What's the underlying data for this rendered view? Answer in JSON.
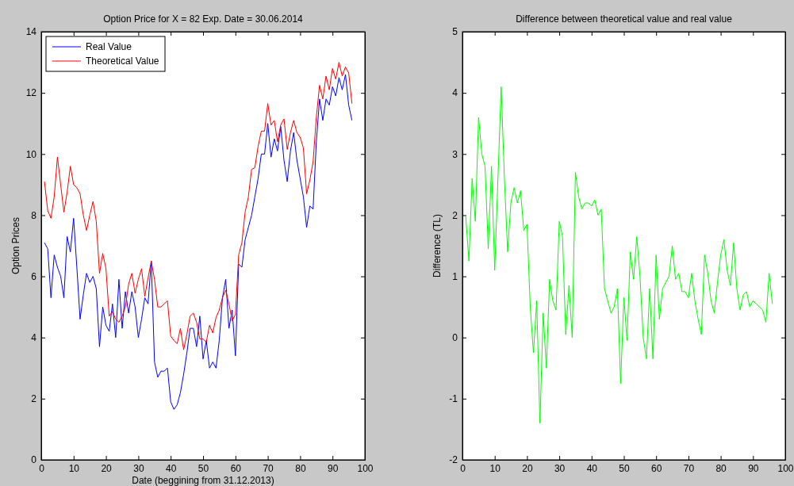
{
  "chart_data": [
    {
      "type": "line",
      "title": "Option Price for X = 82 Exp. Date = 30.06.2014",
      "xlabel": "Date (beggining from 31.12.2013)",
      "ylabel": "Option Prices",
      "x": [
        1,
        2,
        3,
        4,
        5,
        6,
        7,
        8,
        9,
        10,
        11,
        12,
        13,
        14,
        15,
        16,
        17,
        18,
        19,
        20,
        21,
        22,
        23,
        24,
        25,
        26,
        27,
        28,
        29,
        30,
        31,
        32,
        33,
        34,
        35,
        36,
        37,
        38,
        39,
        40,
        41,
        42,
        43,
        44,
        45,
        46,
        47,
        48,
        49,
        50,
        51,
        52,
        53,
        54,
        55,
        56,
        57,
        58,
        59,
        60,
        61,
        62,
        63,
        64,
        65,
        66,
        67,
        68,
        69,
        70,
        71,
        72,
        73,
        74,
        75,
        76,
        77,
        78,
        79,
        80,
        81,
        82,
        83,
        84,
        85,
        86,
        87,
        88,
        89,
        90,
        91,
        92,
        93,
        94,
        95,
        96
      ],
      "series": [
        {
          "name": "Real Value",
          "color": "#0000ff",
          "values": [
            7.1,
            6.9,
            5.3,
            6.7,
            6.3,
            6.0,
            5.3,
            7.3,
            6.8,
            7.9,
            6.3,
            4.6,
            5.4,
            6.1,
            5.8,
            6.0,
            5.6,
            3.7,
            5.0,
            4.4,
            4.2,
            5.1,
            4.0,
            5.9,
            4.3,
            5.5,
            4.8,
            5.5,
            5.0,
            4.0,
            4.6,
            5.3,
            5.1,
            6.5,
            3.2,
            2.7,
            2.9,
            2.9,
            3.0,
            1.9,
            1.65,
            1.8,
            2.2,
            2.8,
            3.5,
            4.3,
            4.3,
            3.7,
            4.7,
            3.3,
            3.9,
            3.0,
            3.2,
            3.0,
            3.9,
            5.3,
            5.9,
            4.3,
            4.9,
            3.4,
            6.4,
            6.3,
            7.2,
            7.6,
            8.0,
            8.6,
            9.2,
            10.0,
            10.0,
            11.0,
            9.9,
            10.5,
            10.1,
            10.9,
            9.8,
            9.1,
            10.1,
            10.7,
            9.8,
            9.2,
            8.6,
            7.6,
            8.3,
            8.2,
            10.4,
            11.8,
            11.1,
            11.8,
            11.6,
            12.2,
            11.9,
            12.5,
            12.1,
            12.6,
            11.6,
            11.1
          ]
        },
        {
          "name": "Theoretical Value",
          "color": "#ff0000",
          "values": [
            9.1,
            8.15,
            7.9,
            8.6,
            9.9,
            9.0,
            8.1,
            8.75,
            9.6,
            9.0,
            8.9,
            8.7,
            8.0,
            7.5,
            8.0,
            8.45,
            7.8,
            6.1,
            6.75,
            6.25,
            4.7,
            4.85,
            4.6,
            4.5,
            4.7,
            5.0,
            5.75,
            6.1,
            5.45,
            5.9,
            6.25,
            5.35,
            5.95,
            6.5,
            5.9,
            5.0,
            5.0,
            5.1,
            5.2,
            4.05,
            3.9,
            3.8,
            4.3,
            3.6,
            4.1,
            4.7,
            4.8,
            4.5,
            3.95,
            3.95,
            3.85,
            4.4,
            4.15,
            4.65,
            4.9,
            5.3,
            5.55,
            5.1,
            4.55,
            4.75,
            6.7,
            7.1,
            8.1,
            8.6,
            9.5,
            9.55,
            10.25,
            10.75,
            10.75,
            11.65,
            10.95,
            11.1,
            10.4,
            10.95,
            11.15,
            10.15,
            10.7,
            11.1,
            10.7,
            10.55,
            10.2,
            8.7,
            9.15,
            9.75,
            11.2,
            12.25,
            11.8,
            12.55,
            12.1,
            12.8,
            12.45,
            13.0,
            12.55,
            12.85,
            12.65,
            11.65
          ]
        }
      ],
      "xlim": [
        0,
        100
      ],
      "xticks": [
        0,
        10,
        20,
        30,
        40,
        50,
        60,
        70,
        80,
        90,
        100
      ],
      "ylim": [
        0,
        14
      ],
      "yticks": [
        0,
        2,
        4,
        6,
        8,
        10,
        12,
        14
      ],
      "legend": "top left"
    },
    {
      "type": "line",
      "title": "Difference between theoretical value and real value",
      "ylabel": "Difference (TL)",
      "x": [
        1,
        2,
        3,
        4,
        5,
        6,
        7,
        8,
        9,
        10,
        11,
        12,
        13,
        14,
        15,
        16,
        17,
        18,
        19,
        20,
        21,
        22,
        23,
        24,
        25,
        26,
        27,
        28,
        29,
        30,
        31,
        32,
        33,
        34,
        35,
        36,
        37,
        38,
        39,
        40,
        41,
        42,
        43,
        44,
        45,
        46,
        47,
        48,
        49,
        50,
        51,
        52,
        53,
        54,
        55,
        56,
        57,
        58,
        59,
        60,
        61,
        62,
        63,
        64,
        65,
        66,
        67,
        68,
        69,
        70,
        71,
        72,
        73,
        74,
        75,
        76,
        77,
        78,
        79,
        80,
        81,
        82,
        83,
        84,
        85,
        86,
        87,
        88,
        89,
        90,
        91,
        92,
        93,
        94,
        95,
        96
      ],
      "series": [
        {
          "color": "#00ff00",
          "values": [
            2.0,
            1.25,
            2.6,
            1.9,
            3.6,
            3.0,
            2.8,
            1.45,
            2.8,
            1.1,
            2.6,
            4.1,
            2.6,
            1.4,
            2.2,
            2.45,
            2.2,
            2.4,
            1.75,
            1.85,
            0.5,
            -0.25,
            0.6,
            -1.4,
            0.4,
            -0.5,
            0.95,
            0.6,
            0.45,
            1.9,
            1.65,
            0.05,
            0.85,
            0.0,
            2.7,
            2.3,
            2.1,
            2.2,
            2.2,
            2.15,
            2.25,
            2.0,
            2.1,
            0.8,
            0.6,
            0.4,
            0.5,
            0.8,
            -0.75,
            0.65,
            -0.05,
            1.4,
            0.95,
            1.65,
            1.0,
            0.0,
            -0.35,
            0.8,
            -0.35,
            1.35,
            0.3,
            0.8,
            0.9,
            1.0,
            1.5,
            0.95,
            1.05,
            0.75,
            0.75,
            0.65,
            1.05,
            0.6,
            0.3,
            0.05,
            1.35,
            1.05,
            0.6,
            0.4,
            0.9,
            1.35,
            1.6,
            1.1,
            0.85,
            1.55,
            0.8,
            0.45,
            0.7,
            0.75,
            0.5,
            0.6,
            0.55,
            0.5,
            0.45,
            0.25,
            1.05,
            0.55
          ]
        }
      ],
      "xlim": [
        0,
        100
      ],
      "xticks": [
        0,
        10,
        20,
        30,
        40,
        50,
        60,
        70,
        80,
        90,
        100
      ],
      "ylim": [
        -2,
        5
      ],
      "yticks": [
        -2,
        -1,
        0,
        1,
        2,
        3,
        4,
        5
      ]
    }
  ]
}
